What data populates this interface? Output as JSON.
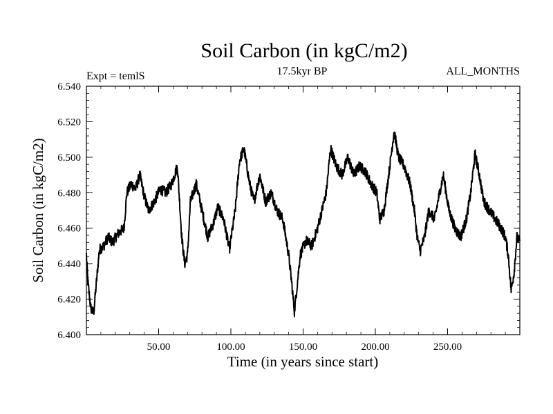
{
  "header": {
    "title": "Soil Carbon (in kgC/m2)",
    "subtitle": "17.5kyr BP",
    "left_label": "Expt = temlS",
    "right_label": "ALL_MONTHS"
  },
  "chart_data": {
    "type": "line",
    "title": "Soil Carbon (in kgC/m2)",
    "subtitle": "17.5kyr BP",
    "xlabel": "Time (in years since start)",
    "ylabel": "Soil Carbon (in kgC/m2)",
    "xlim": [
      0,
      300
    ],
    "ylim": [
      6.4,
      6.54
    ],
    "x_ticks": [
      50,
      100,
      150,
      200,
      250
    ],
    "x_tick_labels": [
      "50.00",
      "100.00",
      "150.00",
      "200.00",
      "250.00"
    ],
    "y_ticks": [
      6.4,
      6.42,
      6.44,
      6.46,
      6.48,
      6.5,
      6.52,
      6.54
    ],
    "y_tick_labels": [
      "6.400",
      "6.420",
      "6.440",
      "6.460",
      "6.480",
      "6.500",
      "6.520",
      "6.540"
    ],
    "grid": false,
    "line_color": "#000000",
    "noise_amplitude": 0.003,
    "series": [
      {
        "name": "Soil Carbon",
        "x": [
          0,
          1,
          3,
          5,
          7,
          9,
          12,
          15,
          18,
          22,
          26,
          28,
          31,
          34,
          37,
          40,
          43,
          47,
          51,
          55,
          59,
          61,
          63,
          66,
          68,
          70,
          72,
          76,
          80,
          84,
          88,
          91,
          95,
          99,
          103,
          106,
          109,
          113,
          116,
          120,
          124,
          128,
          132,
          136,
          140,
          142,
          144,
          148,
          152,
          156,
          160,
          163,
          166,
          169,
          173,
          177,
          181,
          185,
          189,
          193,
          197,
          201,
          203,
          206,
          210,
          213,
          216,
          220,
          224,
          227,
          229,
          231,
          234,
          237,
          241,
          244,
          247,
          251,
          255,
          259,
          263,
          266,
          269,
          272,
          275,
          279,
          283,
          287,
          290,
          292,
          294,
          296,
          298,
          300
        ],
        "y": [
          6.445,
          6.43,
          6.415,
          6.412,
          6.43,
          6.448,
          6.45,
          6.455,
          6.452,
          6.457,
          6.46,
          6.48,
          6.485,
          6.482,
          6.49,
          6.478,
          6.47,
          6.475,
          6.482,
          6.48,
          6.485,
          6.49,
          6.495,
          6.455,
          6.44,
          6.445,
          6.475,
          6.485,
          6.47,
          6.455,
          6.463,
          6.472,
          6.465,
          6.448,
          6.47,
          6.498,
          6.505,
          6.485,
          6.475,
          6.49,
          6.475,
          6.48,
          6.47,
          6.465,
          6.445,
          6.43,
          6.413,
          6.445,
          6.453,
          6.45,
          6.46,
          6.47,
          6.48,
          6.505,
          6.495,
          6.49,
          6.5,
          6.49,
          6.495,
          6.492,
          6.485,
          6.48,
          6.465,
          6.47,
          6.495,
          6.515,
          6.5,
          6.495,
          6.485,
          6.47,
          6.455,
          6.447,
          6.455,
          6.47,
          6.465,
          6.478,
          6.49,
          6.47,
          6.46,
          6.455,
          6.465,
          6.48,
          6.502,
          6.49,
          6.475,
          6.47,
          6.465,
          6.46,
          6.455,
          6.445,
          6.425,
          6.435,
          6.455,
          6.452
        ]
      }
    ]
  }
}
